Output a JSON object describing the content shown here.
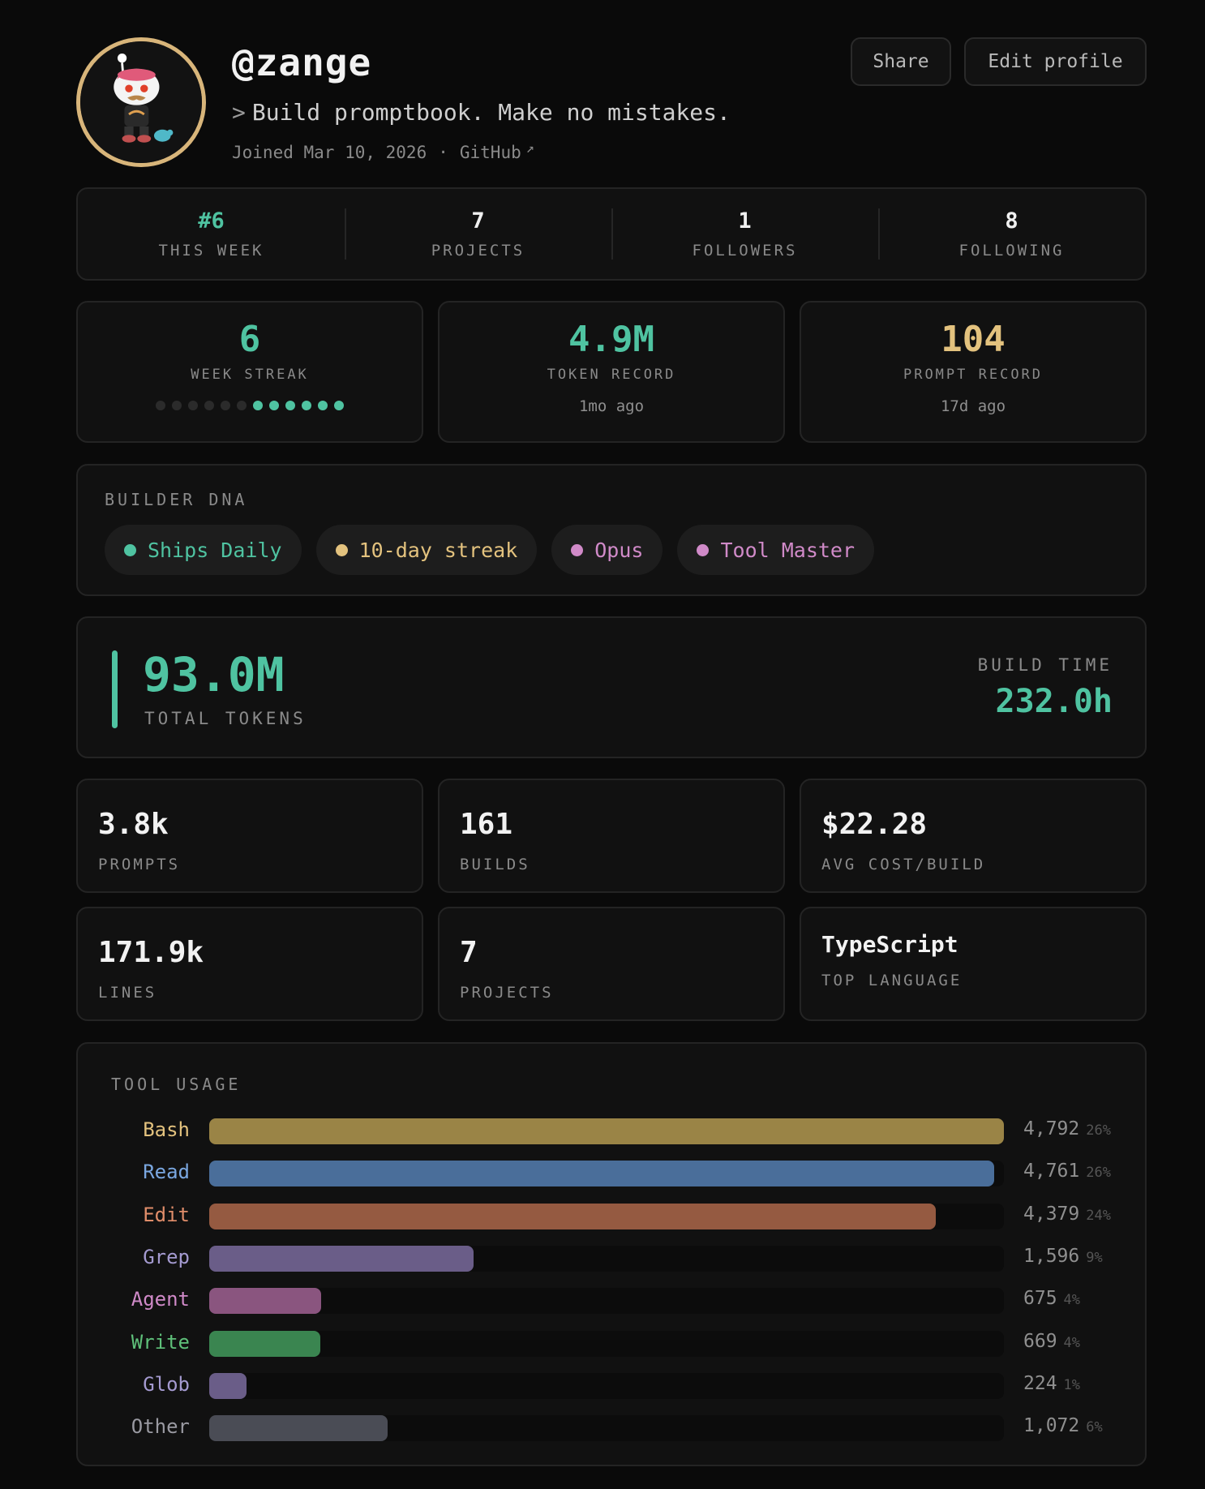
{
  "profile": {
    "username": "@zange",
    "bio_prompt": ">",
    "bio": "Build promptbook. Make no mistakes.",
    "joined": "Joined Mar 10, 2026",
    "separator": "·",
    "github_label": "GitHub",
    "github_arrow": "↗"
  },
  "actions": {
    "share_label": "Share",
    "edit_label": "Edit profile"
  },
  "social": [
    {
      "value": "#6",
      "label": "THIS WEEK"
    },
    {
      "value": "7",
      "label": "PROJECTS"
    },
    {
      "value": "1",
      "label": "FOLLOWERS"
    },
    {
      "value": "8",
      "label": "FOLLOWING"
    }
  ],
  "records": {
    "streak": {
      "value": "6",
      "label": "WEEK STREAK",
      "weeks_total": 12,
      "weeks_active": 6
    },
    "token": {
      "value": "4.9M",
      "label": "TOKEN RECORD",
      "sub": "1mo ago"
    },
    "prompt": {
      "value": "104",
      "label": "PROMPT RECORD",
      "sub": "17d ago"
    }
  },
  "dna": {
    "title": "BUILDER DNA",
    "pills": [
      {
        "label": "Ships Daily",
        "color": "#4fc3a1"
      },
      {
        "label": "10-day streak",
        "color": "#e3c27e"
      },
      {
        "label": "Opus",
        "color": "#d08ac8"
      },
      {
        "label": "Tool Master",
        "color": "#d08ac8"
      }
    ]
  },
  "totals": {
    "tokens_value": "93.0M",
    "tokens_label": "TOTAL TOKENS",
    "build_time_label": "BUILD TIME",
    "build_time_value": "232.0h"
  },
  "stats": [
    {
      "value": "3.8k",
      "label": "PROMPTS"
    },
    {
      "value": "161",
      "label": "BUILDS"
    },
    {
      "value": "$22.28",
      "label": "AVG COST/BUILD"
    },
    {
      "value": "171.9k",
      "label": "LINES"
    },
    {
      "value": "7",
      "label": "PROJECTS"
    },
    {
      "value": "TypeScript",
      "label": "TOP LANGUAGE"
    }
  ],
  "tool_usage": {
    "title": "TOOL USAGE",
    "max": 4792,
    "tools": [
      {
        "name": "Bash",
        "count": "4,792",
        "value": 4792,
        "pct": "26%",
        "color": "#9a8446",
        "label_color": "#e3c27e"
      },
      {
        "name": "Read",
        "count": "4,761",
        "value": 4761,
        "pct": "26%",
        "color": "#4a6e9a",
        "label_color": "#7aa7e0"
      },
      {
        "name": "Edit",
        "count": "4,379",
        "value": 4379,
        "pct": "24%",
        "color": "#955a41",
        "label_color": "#e08d6a"
      },
      {
        "name": "Grep",
        "count": "1,596",
        "value": 1596,
        "pct": "9%",
        "color": "#6a5d88",
        "label_color": "#a49ad0"
      },
      {
        "name": "Agent",
        "count": "675",
        "value": 675,
        "pct": "4%",
        "color": "#8a557f",
        "label_color": "#d08ac8"
      },
      {
        "name": "Write",
        "count": "669",
        "value": 669,
        "pct": "4%",
        "color": "#3a8550",
        "label_color": "#5fc07a"
      },
      {
        "name": "Glob",
        "count": "224",
        "value": 224,
        "pct": "1%",
        "color": "#6a5d88",
        "label_color": "#a49ad0"
      },
      {
        "name": "Other",
        "count": "1,072",
        "value": 1072,
        "pct": "6%",
        "color": "#4a4c55",
        "label_color": "#9a9aa2"
      }
    ]
  }
}
